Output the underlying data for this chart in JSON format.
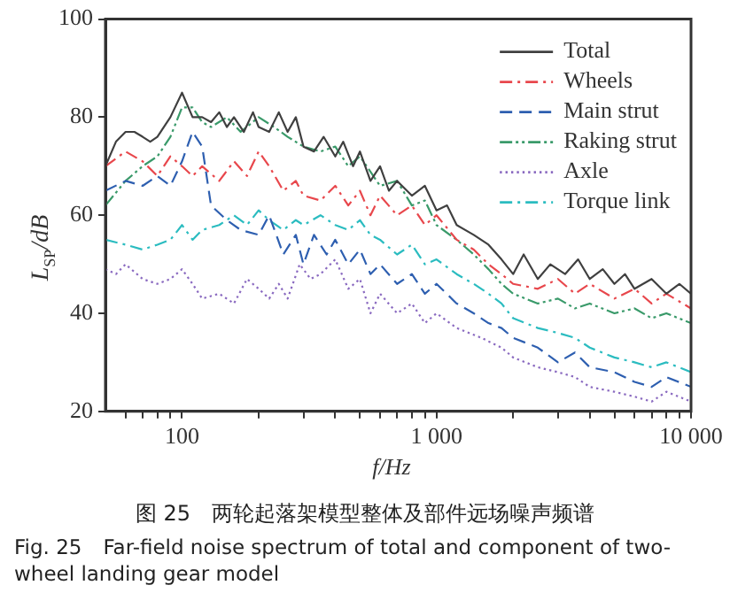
{
  "chart_data": {
    "type": "line",
    "title": "图 25　两轮起落架模型整体及部件远场噪声频谱",
    "subtitle": "Fig. 25　Far-field noise spectrum of total and component of two-wheel landing gear model",
    "xlabel": "f/Hz",
    "ylabel": "L$_{SP}$/dB",
    "log": "x",
    "xlim": [
      50,
      10000
    ],
    "xticks": [
      {
        "value": 60,
        "label": null
      },
      {
        "value": 70,
        "label": null
      },
      {
        "value": 80,
        "label": null
      },
      {
        "value": 90,
        "label": null
      },
      100,
      {
        "value": 200,
        "label": null
      },
      {
        "value": 300,
        "label": null
      },
      {
        "value": 400,
        "label": null
      },
      {
        "value": 500,
        "label": null
      },
      {
        "value": 600,
        "label": null
      },
      {
        "value": 700,
        "label": null
      },
      {
        "value": 800,
        "label": null
      },
      {
        "value": 900,
        "label": null
      },
      {
        "value": 1000,
        "label": "1 000"
      },
      {
        "value": 2000,
        "label": null
      },
      {
        "value": 3000,
        "label": null
      },
      {
        "value": 4000,
        "label": null
      },
      {
        "value": 5000,
        "label": null
      },
      {
        "value": 6000,
        "label": null
      },
      {
        "value": 7000,
        "label": null
      },
      {
        "value": 8000,
        "label": null
      },
      {
        "value": 9000,
        "label": null
      },
      {
        "value": 10000,
        "label": "10 000"
      }
    ],
    "ylim": [
      20,
      100
    ],
    "yticks": [
      20,
      40,
      60,
      80,
      100
    ],
    "grid": false,
    "legend": "top right",
    "marker": "none",
    "series": [
      {
        "name": "Total",
        "color": "#404040",
        "line_style": "solid",
        "x": [
          50,
          55,
          60,
          65,
          70,
          75,
          80,
          90,
          100,
          110,
          120,
          130,
          140,
          150,
          160,
          175,
          190,
          200,
          220,
          240,
          260,
          280,
          300,
          330,
          360,
          400,
          430,
          470,
          500,
          550,
          600,
          650,
          700,
          800,
          900,
          1000,
          1100,
          1200,
          1400,
          1600,
          1800,
          2000,
          2200,
          2500,
          2800,
          3200,
          3600,
          4000,
          4500,
          5000,
          5500,
          6000,
          7000,
          8000,
          9000,
          10000
        ],
        "values": [
          70,
          75,
          77,
          77,
          76,
          75,
          76,
          80,
          85,
          80,
          80,
          79,
          81,
          78,
          80,
          77,
          81,
          78,
          77,
          81,
          77,
          80,
          74,
          73,
          76,
          72,
          75,
          70,
          73,
          67,
          70,
          65,
          67,
          64,
          66,
          61,
          62,
          58,
          56,
          54,
          51,
          48,
          52,
          47,
          50,
          48,
          51,
          47,
          49,
          46,
          48,
          45,
          47,
          44,
          46,
          44
        ]
      },
      {
        "name": "Wheels",
        "color": "#e8474c",
        "line_style": "dashdot",
        "x": [
          50,
          60,
          70,
          80,
          90,
          100,
          110,
          120,
          140,
          160,
          180,
          200,
          220,
          250,
          280,
          300,
          350,
          400,
          450,
          500,
          550,
          600,
          700,
          800,
          900,
          1000,
          1200,
          1400,
          1600,
          1800,
          2000,
          2500,
          3000,
          3500,
          4000,
          5000,
          6000,
          7000,
          8000,
          10000
        ],
        "values": [
          70,
          73,
          71,
          68,
          72,
          70,
          68,
          70,
          67,
          71,
          68,
          73,
          70,
          65,
          67,
          64,
          63,
          66,
          62,
          65,
          60,
          64,
          60,
          62,
          58,
          60,
          55,
          53,
          50,
          48,
          46,
          45,
          47,
          44,
          46,
          43,
          45,
          42,
          44,
          41
        ]
      },
      {
        "name": "Main strut",
        "color": "#2e5fb0",
        "line_style": "dashed",
        "x": [
          50,
          60,
          70,
          80,
          90,
          100,
          110,
          120,
          130,
          150,
          170,
          200,
          220,
          250,
          280,
          300,
          330,
          370,
          400,
          450,
          500,
          550,
          600,
          700,
          800,
          900,
          1000,
          1200,
          1400,
          1600,
          1800,
          2000,
          2500,
          3000,
          3500,
          4000,
          5000,
          6000,
          7000,
          8000,
          10000
        ],
        "values": [
          65,
          67,
          66,
          68,
          66,
          71,
          77,
          74,
          62,
          59,
          57,
          56,
          60,
          52,
          56,
          50,
          56,
          52,
          55,
          50,
          53,
          48,
          50,
          46,
          48,
          44,
          46,
          42,
          40,
          38,
          37,
          35,
          33,
          30,
          32,
          29,
          28,
          26,
          25,
          27,
          25
        ]
      },
      {
        "name": "Raking strut",
        "color": "#3a9a6a",
        "line_style": "dashdotdot",
        "x": [
          50,
          60,
          70,
          80,
          90,
          100,
          110,
          120,
          130,
          150,
          170,
          200,
          230,
          260,
          300,
          350,
          400,
          450,
          500,
          600,
          700,
          800,
          900,
          1000,
          1200,
          1400,
          1600,
          1800,
          2000,
          2500,
          3000,
          3500,
          4000,
          5000,
          6000,
          7000,
          8000,
          10000
        ],
        "values": [
          62,
          67,
          70,
          72,
          76,
          82,
          82,
          79,
          78,
          80,
          77,
          80,
          78,
          76,
          74,
          73,
          74,
          70,
          72,
          66,
          67,
          62,
          63,
          58,
          55,
          52,
          49,
          46,
          44,
          42,
          43,
          41,
          42,
          40,
          41,
          39,
          40,
          38
        ]
      },
      {
        "name": "Axle",
        "color": "#8a6ac0",
        "line_style": "dotted",
        "x": [
          50,
          55,
          60,
          70,
          80,
          90,
          100,
          110,
          120,
          140,
          160,
          180,
          200,
          220,
          240,
          260,
          290,
          320,
          350,
          400,
          450,
          500,
          550,
          600,
          700,
          800,
          900,
          1000,
          1200,
          1500,
          1800,
          2000,
          2500,
          3000,
          3500,
          4000,
          5000,
          6000,
          7000,
          8000,
          10000
        ],
        "values": [
          49,
          48,
          50,
          47,
          46,
          47,
          49,
          46,
          43,
          44,
          42,
          47,
          45,
          43,
          46,
          43,
          50,
          47,
          48,
          51,
          45,
          47,
          40,
          44,
          40,
          42,
          38,
          40,
          37,
          35,
          33,
          31,
          29,
          28,
          27,
          25,
          24,
          23,
          22,
          24,
          22
        ]
      },
      {
        "name": "Torque link",
        "color": "#2bbcc0",
        "line_style": "dashdot",
        "x": [
          50,
          60,
          70,
          80,
          90,
          100,
          110,
          120,
          140,
          160,
          180,
          200,
          220,
          250,
          280,
          300,
          350,
          400,
          450,
          500,
          550,
          600,
          700,
          800,
          900,
          1000,
          1200,
          1400,
          1600,
          1800,
          2000,
          2500,
          3000,
          3500,
          4000,
          5000,
          6000,
          7000,
          8000,
          10000
        ],
        "values": [
          55,
          54,
          53,
          54,
          55,
          58,
          55,
          57,
          58,
          60,
          58,
          61,
          59,
          57,
          59,
          58,
          60,
          58,
          57,
          59,
          56,
          55,
          52,
          54,
          50,
          51,
          48,
          46,
          44,
          42,
          39,
          37,
          36,
          35,
          33,
          31,
          30,
          29,
          30,
          28
        ]
      }
    ]
  }
}
